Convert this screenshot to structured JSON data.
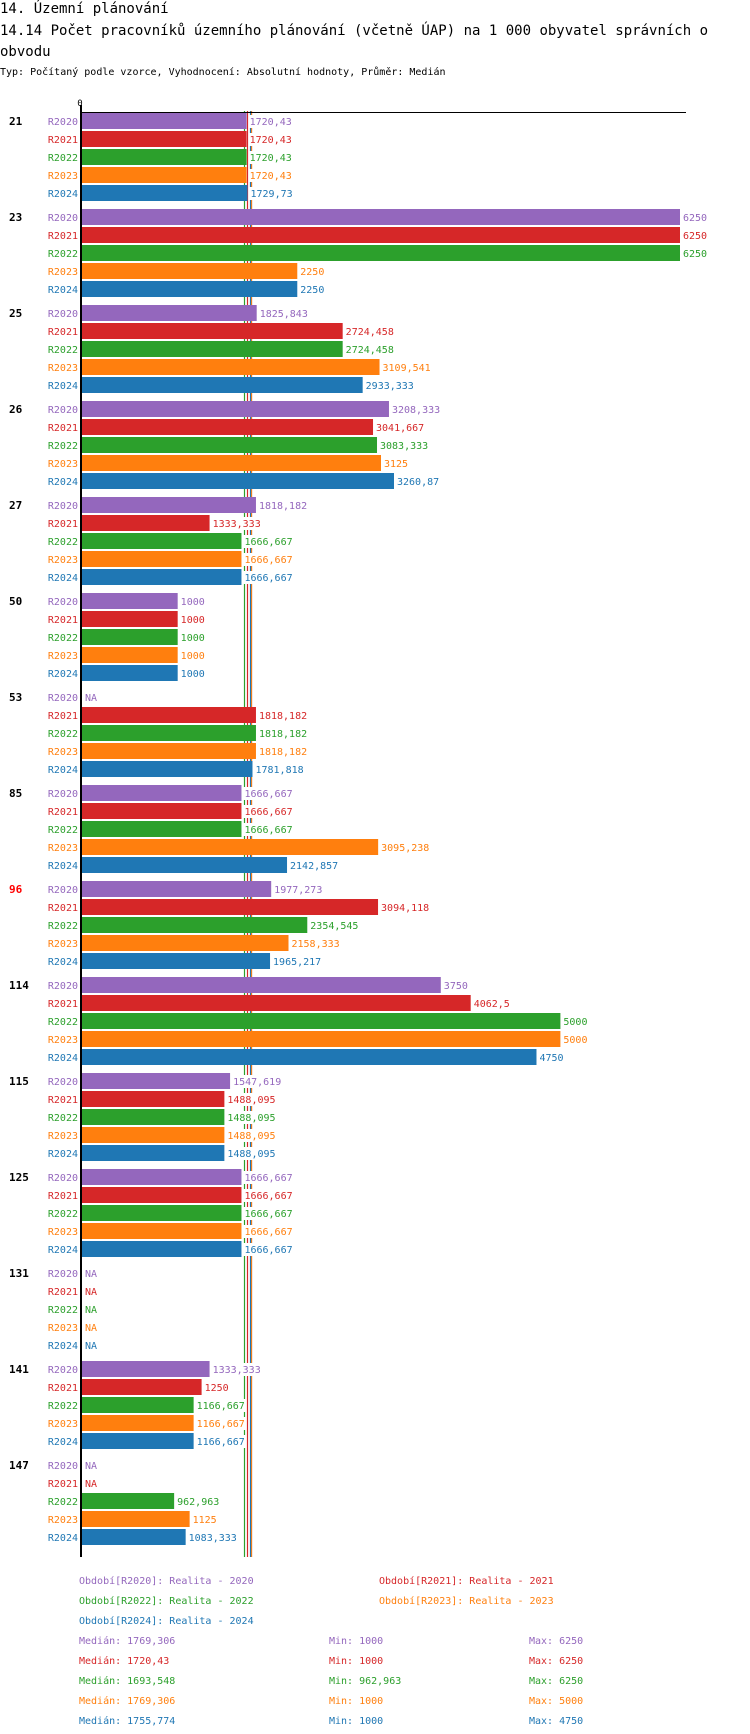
{
  "header": {
    "section_title": "14. Územní plánování",
    "chart_title": "14.14 Počet pracovníků územního plánování (včetně ÚAP) na 1 000 obyvatel správních o obvodu",
    "subtitle": "Typ: Počítaný podle vzorce, Vyhodnocení: Absolutní hodnoty, Průměr: Medián"
  },
  "series_colors": {
    "R2020": "#9467bd",
    "R2021": "#d62728",
    "R2022": "#2ca02c",
    "R2023": "#ff7f0e",
    "R2024": "#1f77b4"
  },
  "chart_data": {
    "type": "bar",
    "orientation": "horizontal",
    "title": "14.14 Počet pracovníků územního plánování (včetně ÚAP) na 1 000 obyvatel správních o obvodu",
    "xlabel": "",
    "ylabel": "",
    "x_tick_labels": [
      "0"
    ],
    "xlim": [
      0,
      6250
    ],
    "grid": false,
    "categories": [
      "21",
      "23",
      "25",
      "26",
      "27",
      "50",
      "53",
      "85",
      "96",
      "114",
      "115",
      "125",
      "131",
      "141",
      "147"
    ],
    "highlighted_category": "96",
    "highlight_color": "#ff0000",
    "series": [
      {
        "name": "R2020",
        "values": [
          1720.43,
          6250,
          1825.843,
          3208.333,
          1818.182,
          1000,
          null,
          1666.667,
          1977.273,
          3750,
          1547.619,
          1666.667,
          null,
          1333.333,
          null
        ],
        "labels": [
          "1720,43",
          "6250",
          "1825,843",
          "3208,333",
          "1818,182",
          "1000",
          "NA",
          "1666,667",
          "1977,273",
          "3750",
          "1547,619",
          "1666,667",
          "NA",
          "1333,333",
          "NA"
        ]
      },
      {
        "name": "R2021",
        "values": [
          1720.43,
          6250,
          2724.458,
          3041.667,
          1333.333,
          1000,
          1818.182,
          1666.667,
          3094.118,
          4062.5,
          1488.095,
          1666.667,
          null,
          1250,
          null
        ],
        "labels": [
          "1720,43",
          "6250",
          "2724,458",
          "3041,667",
          "1333,333",
          "1000",
          "1818,182",
          "1666,667",
          "3094,118",
          "4062,5",
          "1488,095",
          "1666,667",
          "NA",
          "1250",
          "NA"
        ]
      },
      {
        "name": "R2022",
        "values": [
          1720.43,
          6250,
          2724.458,
          3083.333,
          1666.667,
          1000,
          1818.182,
          1666.667,
          2354.545,
          5000,
          1488.095,
          1666.667,
          null,
          1166.667,
          962.963
        ],
        "labels": [
          "1720,43",
          "6250",
          "2724,458",
          "3083,333",
          "1666,667",
          "1000",
          "1818,182",
          "1666,667",
          "2354,545",
          "5000",
          "1488,095",
          "1666,667",
          "NA",
          "1166,667",
          "962,963"
        ]
      },
      {
        "name": "R2023",
        "values": [
          1720.43,
          2250,
          3109.541,
          3125,
          1666.667,
          1000,
          1818.182,
          3095.238,
          2158.333,
          5000,
          1488.095,
          1666.667,
          null,
          1166.667,
          1125
        ],
        "labels": [
          "1720,43",
          "2250",
          "3109,541",
          "3125",
          "1666,667",
          "1000",
          "1818,182",
          "3095,238",
          "2158,333",
          "5000",
          "1488,095",
          "1666,667",
          "NA",
          "1166,667",
          "1125"
        ]
      },
      {
        "name": "R2024",
        "values": [
          1729.73,
          2250,
          2933.333,
          3260.87,
          1666.667,
          1000,
          1781.818,
          2142.857,
          1965.217,
          4750,
          1488.095,
          1666.667,
          null,
          1166.667,
          1083.333
        ],
        "labels": [
          "1729,73",
          "2250",
          "2933,333",
          "3260,87",
          "1666,667",
          "1000",
          "1781,818",
          "2142,857",
          "1965,217",
          "4750",
          "1488,095",
          "1666,667",
          "NA",
          "1166,667",
          "1083,333"
        ]
      }
    ],
    "median_lines": [
      {
        "series": "R2020",
        "value": 1769.306
      },
      {
        "series": "R2021",
        "value": 1720.43
      },
      {
        "series": "R2022",
        "value": 1693.548
      },
      {
        "series": "R2023",
        "value": 1769.306
      },
      {
        "series": "R2024",
        "value": 1755.774
      }
    ],
    "legend_position": "bottom"
  },
  "legend": {
    "periods": [
      {
        "series": "R2020",
        "text": "Období[R2020]: Realita - 2020"
      },
      {
        "series": "R2021",
        "text": "Období[R2021]: Realita - 2021"
      },
      {
        "series": "R2022",
        "text": "Období[R2022]: Realita - 2022"
      },
      {
        "series": "R2023",
        "text": "Období[R2023]: Realita - 2023"
      },
      {
        "series": "R2024",
        "text": "Období[R2024]: Realita - 2024"
      }
    ],
    "stats": [
      {
        "series": "R2020",
        "median": "Medián: 1769,306",
        "min": "Min: 1000",
        "max": "Max: 6250"
      },
      {
        "series": "R2021",
        "median": "Medián: 1720,43",
        "min": "Min: 1000",
        "max": "Max: 6250"
      },
      {
        "series": "R2022",
        "median": "Medián: 1693,548",
        "min": "Min: 962,963",
        "max": "Max: 6250"
      },
      {
        "series": "R2023",
        "median": "Medián: 1769,306",
        "min": "Min: 1000",
        "max": "Max: 5000"
      },
      {
        "series": "R2024",
        "median": "Medián: 1755,774",
        "min": "Min: 1000",
        "max": "Max: 4750"
      }
    ]
  }
}
